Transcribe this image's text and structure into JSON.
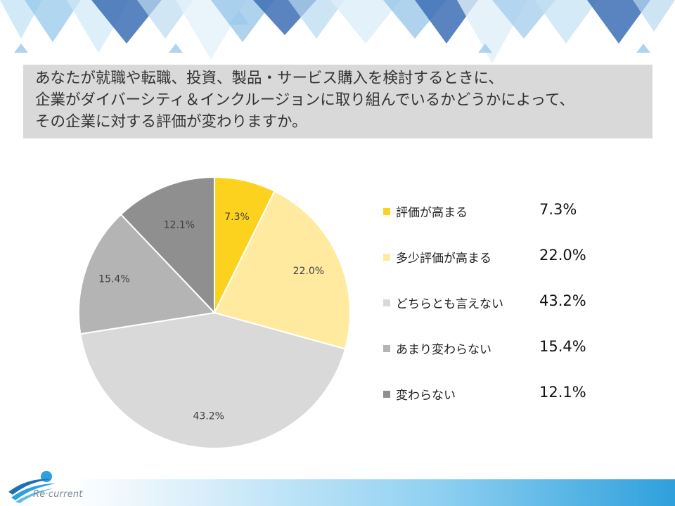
{
  "question": {
    "lines": [
      "あなたが就職や転職、投資、製品・サービス購入を検討するときに、",
      "企業がダイバーシティ＆インクルージョンに取り組んでいるかどうかによって、",
      "その企業に対する評価が変わりますか。"
    ]
  },
  "chart_data": {
    "type": "pie",
    "title": "",
    "slices": [
      {
        "label": "評価が高まる",
        "value": 7.3,
        "display": "7.3%",
        "color": "#fdd21f"
      },
      {
        "label": "多少評価が高まる",
        "value": 22.0,
        "display": "22.0%",
        "color": "#ffeaa0"
      },
      {
        "label": "どちらとも言えない",
        "value": 43.2,
        "display": "43.2%",
        "color": "#d9d9d9"
      },
      {
        "label": "あまり変わらない",
        "value": 15.4,
        "display": "15.4%",
        "color": "#b4b4b4"
      },
      {
        "label": "変わらない",
        "value": 12.1,
        "display": "12.1%",
        "color": "#8f8f8f"
      }
    ],
    "start": "12 o'clock",
    "direction": "clockwise",
    "legend_position": "right"
  },
  "brand": {
    "logo_text": "Re·current",
    "accent": "#2ea0dc"
  }
}
